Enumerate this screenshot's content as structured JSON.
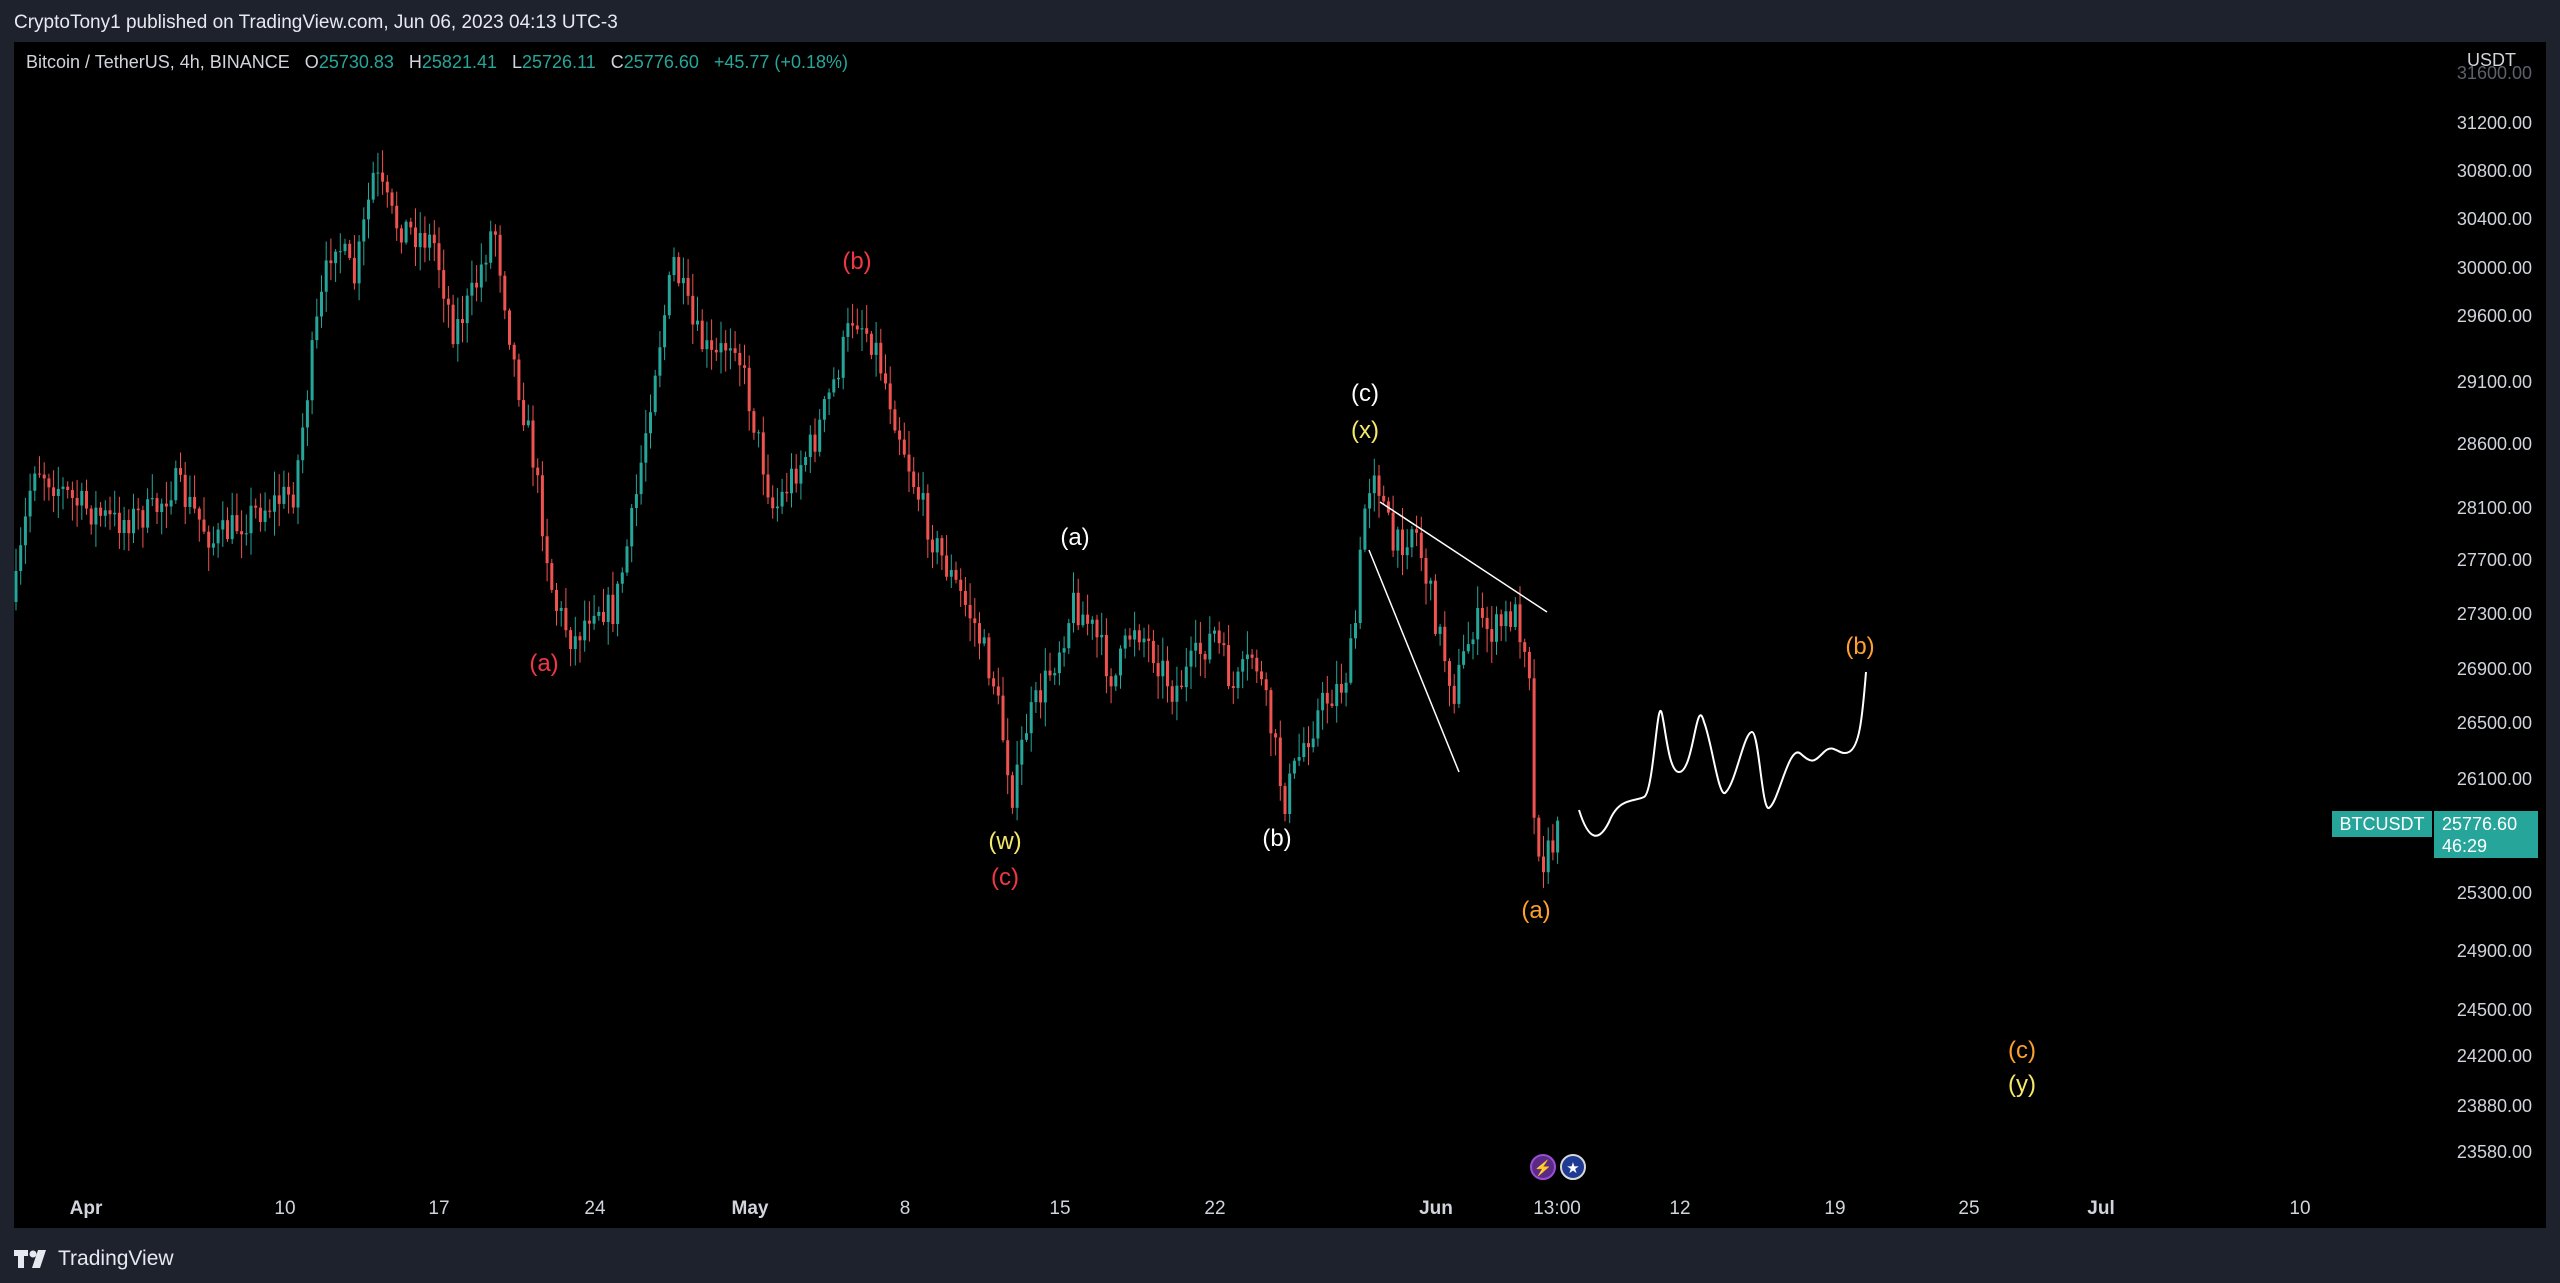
{
  "header": {
    "publish_line": "CryptoTony1 published on TradingView.com, Jun 06, 2023 04:13 UTC-3"
  },
  "legend": {
    "symbol": "Bitcoin / TetherUS, 4h, BINANCE",
    "open_label": "O",
    "open": "25730.83",
    "high_label": "H",
    "high": "25821.41",
    "low_label": "L",
    "low": "25726.11",
    "close_label": "C",
    "close": "25776.60",
    "change": "+45.77 (+0.18%)"
  },
  "price_scale": {
    "unit": "USDT",
    "ticks": [
      "31600.00",
      "31200.00",
      "30800.00",
      "30400.00",
      "30000.00",
      "29600.00",
      "29100.00",
      "28600.00",
      "28100.00",
      "27700.00",
      "27300.00",
      "26900.00",
      "26500.00",
      "26100.00",
      "25300.00",
      "24900.00",
      "24500.00",
      "24200.00",
      "23880.00",
      "23580.00"
    ],
    "symbol_badge": "BTCUSDT",
    "current_price": "25776.60",
    "countdown": "46:29"
  },
  "time_scale": {
    "ticks": [
      {
        "label": "Apr",
        "major": true
      },
      {
        "label": "10",
        "major": false
      },
      {
        "label": "17",
        "major": false
      },
      {
        "label": "24",
        "major": false
      },
      {
        "label": "May",
        "major": true
      },
      {
        "label": "8",
        "major": false
      },
      {
        "label": "15",
        "major": false
      },
      {
        "label": "22",
        "major": false
      },
      {
        "label": "Jun",
        "major": true
      },
      {
        "label": "13:00",
        "major": false
      },
      {
        "label": "12",
        "major": false
      },
      {
        "label": "19",
        "major": false
      },
      {
        "label": "25",
        "major": false
      },
      {
        "label": "Jul",
        "major": true
      },
      {
        "label": "10",
        "major": false
      }
    ]
  },
  "wave_labels": [
    {
      "text": "(a)",
      "color": "#f23645"
    },
    {
      "text": "(b)",
      "color": "#f23645"
    },
    {
      "text": "(c)",
      "color": "#f23645"
    },
    {
      "text": "(w)",
      "color": "#f5e96b"
    },
    {
      "text": "(a)",
      "color": "#ffffff"
    },
    {
      "text": "(b)",
      "color": "#ffffff"
    },
    {
      "text": "(c)",
      "color": "#ffffff"
    },
    {
      "text": "(x)",
      "color": "#f5e96b"
    },
    {
      "text": "(a)",
      "color": "#ff9f2e"
    },
    {
      "text": "(b)",
      "color": "#ff9f2e"
    },
    {
      "text": "(c)",
      "color": "#ff9f2e"
    },
    {
      "text": "(y)",
      "color": "#f5e96b"
    }
  ],
  "footer": {
    "brand": "TradingView"
  },
  "colors": {
    "up": "#26a69a",
    "down": "#ef5350",
    "background": "#000000",
    "frame": "#1e222d"
  },
  "icons": [
    "lightning-event-icon",
    "us-flag-event-icon",
    "tradingview-logo-icon"
  ]
}
